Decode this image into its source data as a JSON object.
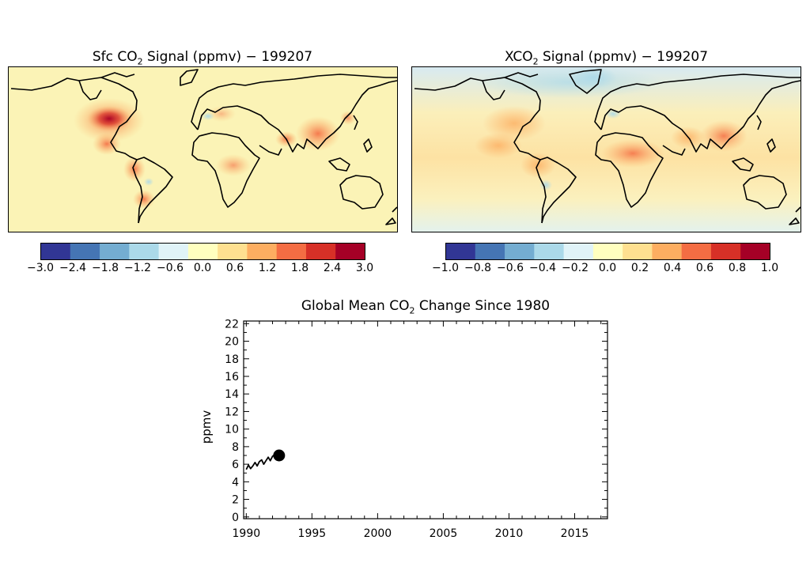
{
  "maps": [
    {
      "title_prefix": "Sfc CO",
      "title_sub": "2",
      "title_suffix": " Signal (ppmv) − 199207",
      "colorbar_ticks": [
        "−3.0",
        "−2.4",
        "−1.8",
        "−1.2",
        "−0.6",
        "0.0",
        "0.6",
        "1.2",
        "1.8",
        "2.4",
        "3.0"
      ],
      "colorbar_range": [
        -3.0,
        3.0
      ]
    },
    {
      "title_prefix": "XCO",
      "title_sub": "2",
      "title_suffix": " Signal (ppmv) − 199207",
      "colorbar_ticks": [
        "−1.0",
        "−0.8",
        "−0.6",
        "−0.4",
        "−0.2",
        "0.0",
        "0.2",
        "0.4",
        "0.6",
        "0.8",
        "1.0"
      ],
      "colorbar_range": [
        -1.0,
        1.0
      ]
    }
  ],
  "colors": {
    "colormap": [
      "#313695",
      "#4575b4",
      "#74add1",
      "#abd9e9",
      "#e0f3f8",
      "#ffffbf",
      "#fee090",
      "#fdae61",
      "#f46d43",
      "#d73027",
      "#a50026"
    ],
    "coastline": "#000000"
  },
  "chart_data": {
    "type": "line",
    "title_prefix": "Global Mean CO",
    "title_sub": "2",
    "title_suffix": " Change Since 1980",
    "ylabel": "ppmv",
    "xlabel": "",
    "xlim": [
      1989.8,
      2017.5
    ],
    "ylim": [
      -0.2,
      22.3
    ],
    "x_ticks": [
      1990,
      1995,
      2000,
      2005,
      2010,
      2015
    ],
    "y_ticks": [
      0,
      2,
      4,
      6,
      8,
      10,
      12,
      14,
      16,
      18,
      20,
      22
    ],
    "grid": false,
    "series": [
      {
        "x": [
          1990.0,
          1990.17,
          1990.33,
          1990.5,
          1990.67,
          1990.83,
          1991.0,
          1991.17,
          1991.33,
          1991.5,
          1991.67,
          1991.83,
          1992.0,
          1992.17,
          1992.33,
          1992.5
        ],
        "values": [
          5.4,
          5.9,
          5.5,
          5.8,
          6.2,
          5.8,
          6.3,
          6.5,
          6.0,
          6.4,
          6.8,
          6.4,
          6.9,
          7.1,
          6.7,
          7.0
        ]
      }
    ],
    "marker": {
      "x": 1992.5,
      "y": 7.0
    }
  }
}
